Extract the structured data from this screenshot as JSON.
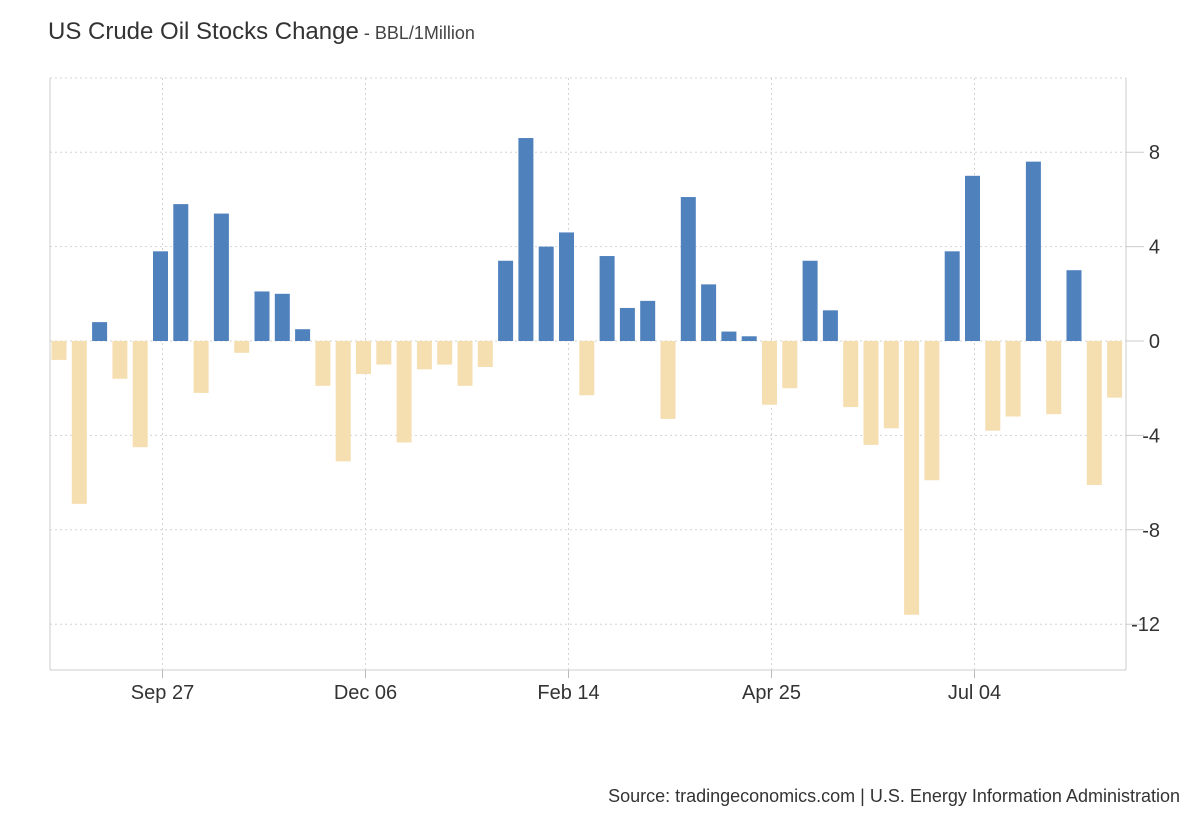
{
  "title": "US Crude Oil Stocks Change",
  "title_separator": " - ",
  "unit": "BBL/1Million",
  "source": "Source: tradingeconomics.com | U.S. Energy Information Administration",
  "colors": {
    "positive": "#4f81bd",
    "negative": "#f5deb0",
    "grid": "#d3d3d3"
  },
  "chart_data": {
    "type": "bar",
    "x_tick_labels": [
      "Sep 27",
      "Dec 06",
      "Feb 14",
      "Apr 25",
      "Jul 04"
    ],
    "x_tick_bar_index": [
      5,
      15,
      25,
      35,
      45
    ],
    "y_tick_labels": [
      "8",
      "4",
      "0",
      "-4",
      "-8",
      "-12"
    ],
    "y_ticks": [
      8,
      4,
      0,
      -4,
      -8,
      -12
    ],
    "ylim": [
      -14,
      11
    ],
    "grid": true,
    "values": [
      -0.8,
      -6.9,
      0.8,
      -1.6,
      -4.5,
      3.8,
      5.8,
      -2.2,
      5.4,
      -0.5,
      2.1,
      2.0,
      0.5,
      -1.9,
      -5.1,
      -1.4,
      -1.0,
      -4.3,
      -1.2,
      -1.0,
      -1.9,
      -1.1,
      3.4,
      8.6,
      4.0,
      4.6,
      -2.3,
      3.6,
      1.4,
      1.7,
      -3.3,
      6.1,
      2.4,
      0.4,
      0.2,
      -2.7,
      -2.0,
      3.4,
      1.3,
      -2.8,
      -4.4,
      -3.7,
      -11.6,
      -5.9,
      3.8,
      7.0,
      -3.8,
      -3.2,
      7.6,
      -3.1,
      3.0,
      -6.1,
      -2.4
    ]
  }
}
